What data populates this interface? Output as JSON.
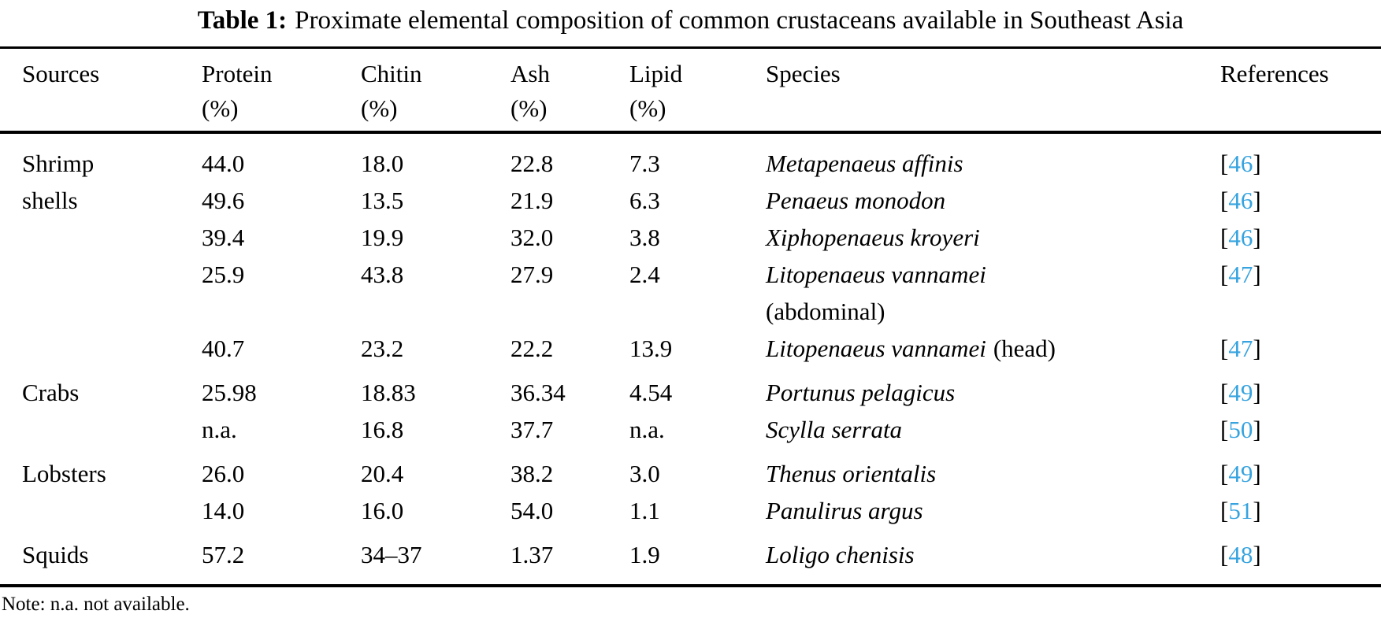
{
  "title": {
    "label": "Table 1:",
    "text": "Proximate elemental composition of common crustaceans available in Southeast Asia"
  },
  "colors": {
    "reference_link": "#36a3df",
    "text": "#000000",
    "background": "#ffffff",
    "rule": "#000000"
  },
  "table": {
    "headers": [
      {
        "name": "Sources",
        "unit": ""
      },
      {
        "name": "Protein",
        "unit": "(%)"
      },
      {
        "name": "Chitin",
        "unit": "(%)"
      },
      {
        "name": "Ash",
        "unit": "(%)"
      },
      {
        "name": "Lipid",
        "unit": "(%)"
      },
      {
        "name": "Species",
        "unit": ""
      },
      {
        "name": "References",
        "unit": ""
      }
    ],
    "rows": [
      {
        "source": "Shrimp shells",
        "rowspan": 5,
        "group_start": false,
        "protein": "44.0",
        "chitin": "18.0",
        "ash": "22.8",
        "lipid": "7.3",
        "species": "Metapenaeus affinis",
        "species_note": "",
        "note_newline": false,
        "ref": "46"
      },
      {
        "source": "",
        "rowspan": 1,
        "group_start": false,
        "protein": "49.6",
        "chitin": "13.5",
        "ash": "21.9",
        "lipid": "6.3",
        "species": "Penaeus monodon",
        "species_note": "",
        "note_newline": false,
        "ref": "46"
      },
      {
        "source": "",
        "rowspan": 1,
        "group_start": false,
        "protein": "39.4",
        "chitin": "19.9",
        "ash": "32.0",
        "lipid": "3.8",
        "species": "Xiphopenaeus kroyeri",
        "species_note": "",
        "note_newline": false,
        "ref": "46"
      },
      {
        "source": "",
        "rowspan": 1,
        "group_start": false,
        "protein": "25.9",
        "chitin": "43.8",
        "ash": "27.9",
        "lipid": "2.4",
        "species": "Litopenaeus vannamei",
        "species_note": "(abdominal)",
        "note_newline": true,
        "ref": "47"
      },
      {
        "source": "",
        "rowspan": 1,
        "group_start": false,
        "protein": "40.7",
        "chitin": "23.2",
        "ash": "22.2",
        "lipid": "13.9",
        "species": "Litopenaeus vannamei",
        "species_note": "(head)",
        "note_newline": false,
        "ref": "47"
      },
      {
        "source": "Crabs",
        "rowspan": 2,
        "group_start": true,
        "protein": "25.98",
        "chitin": "18.83",
        "ash": "36.34",
        "lipid": "4.54",
        "species": "Portunus pelagicus",
        "species_note": "",
        "note_newline": false,
        "ref": "49"
      },
      {
        "source": "",
        "rowspan": 1,
        "group_start": false,
        "protein": "n.a.",
        "chitin": "16.8",
        "ash": "37.7",
        "lipid": "n.a.",
        "species": "Scylla serrata",
        "species_note": "",
        "note_newline": false,
        "ref": "50"
      },
      {
        "source": "Lobsters",
        "rowspan": 2,
        "group_start": true,
        "protein": "26.0",
        "chitin": "20.4",
        "ash": "38.2",
        "lipid": "3.0",
        "species": "Thenus orientalis",
        "species_note": "",
        "note_newline": false,
        "ref": "49"
      },
      {
        "source": "",
        "rowspan": 1,
        "group_start": false,
        "protein": "14.0",
        "chitin": "16.0",
        "ash": "54.0",
        "lipid": "1.1",
        "species": "Panulirus argus",
        "species_note": "",
        "note_newline": false,
        "ref": "51"
      },
      {
        "source": "Squids",
        "rowspan": 1,
        "group_start": true,
        "protein": "57.2",
        "chitin": "34–37",
        "ash": "1.37",
        "lipid": "1.9",
        "species": "Loligo chenisis",
        "species_note": "",
        "note_newline": false,
        "ref": "48"
      }
    ]
  },
  "note": "Note: n.a. not available."
}
